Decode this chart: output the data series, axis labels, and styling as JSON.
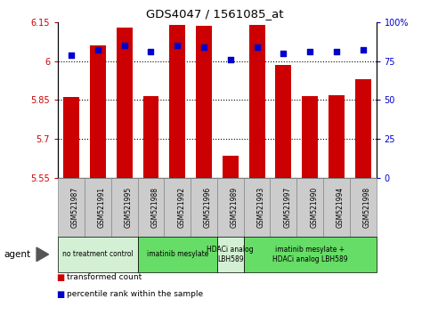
{
  "title": "GDS4047 / 1561085_at",
  "samples": [
    "GSM521987",
    "GSM521991",
    "GSM521995",
    "GSM521988",
    "GSM521992",
    "GSM521996",
    "GSM521989",
    "GSM521993",
    "GSM521997",
    "GSM521990",
    "GSM521994",
    "GSM521998"
  ],
  "red_values": [
    5.86,
    6.06,
    6.13,
    5.865,
    6.14,
    6.135,
    5.635,
    6.14,
    5.985,
    5.865,
    5.87,
    5.93
  ],
  "blue_values": [
    79,
    82,
    85,
    81,
    85,
    84,
    76,
    84,
    80,
    81,
    81,
    82
  ],
  "ylim_left": [
    5.55,
    6.15
  ],
  "ylim_right": [
    0,
    100
  ],
  "yticks_left": [
    5.55,
    5.7,
    5.85,
    6.0,
    6.15
  ],
  "yticks_right": [
    0,
    25,
    50,
    75,
    100
  ],
  "ytick_labels_left": [
    "5.55",
    "5.7",
    "5.85",
    "6",
    "6.15"
  ],
  "ytick_labels_right": [
    "0",
    "25",
    "50",
    "75",
    "100%"
  ],
  "hgrid_values": [
    6.0,
    5.85,
    5.7
  ],
  "agent_groups": [
    {
      "label": "no treatment control",
      "start": 0,
      "end": 3,
      "color": "#d4f0d4"
    },
    {
      "label": "imatinib mesylate",
      "start": 3,
      "end": 6,
      "color": "#66dd66"
    },
    {
      "label": "HDACi analog\nLBH589",
      "start": 6,
      "end": 7,
      "color": "#d4f0d4"
    },
    {
      "label": "imatinib mesylate +\nHDACi analog LBH589",
      "start": 7,
      "end": 12,
      "color": "#66dd66"
    }
  ],
  "bar_color": "#cc0000",
  "dot_color": "#0000cc",
  "bar_bottom": 5.55,
  "bar_width": 0.6,
  "bg_color": "#ffffff",
  "plot_bg_color": "#ffffff",
  "tick_color_left": "#cc0000",
  "tick_color_right": "#0000cc",
  "agent_label": "agent",
  "legend_items": [
    {
      "label": "transformed count",
      "color": "#cc0000"
    },
    {
      "label": "percentile rank within the sample",
      "color": "#0000cc"
    }
  ]
}
